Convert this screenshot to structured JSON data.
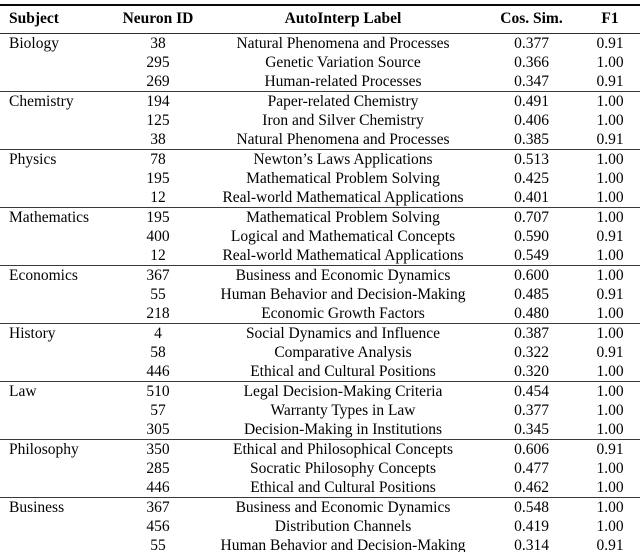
{
  "table": {
    "columns": [
      "Subject",
      "Neuron ID",
      "AutoInterp Label",
      "Cos. Sim.",
      "F1"
    ],
    "groups": [
      {
        "subject": "Biology",
        "rows": [
          {
            "neuron_id": "38",
            "label": "Natural Phenomena and Processes",
            "cos_sim": "0.377",
            "f1": "0.91"
          },
          {
            "neuron_id": "295",
            "label": "Genetic Variation Source",
            "cos_sim": "0.366",
            "f1": "1.00"
          },
          {
            "neuron_id": "269",
            "label": "Human-related Processes",
            "cos_sim": "0.347",
            "f1": "0.91"
          }
        ]
      },
      {
        "subject": "Chemistry",
        "rows": [
          {
            "neuron_id": "194",
            "label": "Paper-related Chemistry",
            "cos_sim": "0.491",
            "f1": "1.00"
          },
          {
            "neuron_id": "125",
            "label": "Iron and Silver Chemistry",
            "cos_sim": "0.406",
            "f1": "1.00"
          },
          {
            "neuron_id": "38",
            "label": "Natural Phenomena and Processes",
            "cos_sim": "0.385",
            "f1": "0.91"
          }
        ]
      },
      {
        "subject": "Physics",
        "rows": [
          {
            "neuron_id": "78",
            "label": "Newton’s Laws Applications",
            "cos_sim": "0.513",
            "f1": "1.00"
          },
          {
            "neuron_id": "195",
            "label": "Mathematical Problem Solving",
            "cos_sim": "0.425",
            "f1": "1.00"
          },
          {
            "neuron_id": "12",
            "label": "Real-world Mathematical Applications",
            "cos_sim": "0.401",
            "f1": "1.00"
          }
        ]
      },
      {
        "subject": "Mathematics",
        "rows": [
          {
            "neuron_id": "195",
            "label": "Mathematical Problem Solving",
            "cos_sim": "0.707",
            "f1": "1.00"
          },
          {
            "neuron_id": "400",
            "label": "Logical and Mathematical Concepts",
            "cos_sim": "0.590",
            "f1": "0.91"
          },
          {
            "neuron_id": "12",
            "label": "Real-world Mathematical Applications",
            "cos_sim": "0.549",
            "f1": "1.00"
          }
        ]
      },
      {
        "subject": "Economics",
        "rows": [
          {
            "neuron_id": "367",
            "label": "Business and Economic Dynamics",
            "cos_sim": "0.600",
            "f1": "1.00"
          },
          {
            "neuron_id": "55",
            "label": "Human Behavior and Decision-Making",
            "cos_sim": "0.485",
            "f1": "0.91"
          },
          {
            "neuron_id": "218",
            "label": "Economic Growth Factors",
            "cos_sim": "0.480",
            "f1": "1.00"
          }
        ]
      },
      {
        "subject": "History",
        "rows": [
          {
            "neuron_id": "4",
            "label": "Social Dynamics and Influence",
            "cos_sim": "0.387",
            "f1": "1.00"
          },
          {
            "neuron_id": "58",
            "label": "Comparative Analysis",
            "cos_sim": "0.322",
            "f1": "0.91"
          },
          {
            "neuron_id": "446",
            "label": "Ethical and Cultural Positions",
            "cos_sim": "0.320",
            "f1": "1.00"
          }
        ]
      },
      {
        "subject": "Law",
        "rows": [
          {
            "neuron_id": "510",
            "label": "Legal Decision-Making Criteria",
            "cos_sim": "0.454",
            "f1": "1.00"
          },
          {
            "neuron_id": "57",
            "label": "Warranty Types in Law",
            "cos_sim": "0.377",
            "f1": "1.00"
          },
          {
            "neuron_id": "305",
            "label": "Decision-Making in Institutions",
            "cos_sim": "0.345",
            "f1": "1.00"
          }
        ]
      },
      {
        "subject": "Philosophy",
        "rows": [
          {
            "neuron_id": "350",
            "label": "Ethical and Philosophical Concepts",
            "cos_sim": "0.606",
            "f1": "0.91"
          },
          {
            "neuron_id": "285",
            "label": "Socratic Philosophy Concepts",
            "cos_sim": "0.477",
            "f1": "1.00"
          },
          {
            "neuron_id": "446",
            "label": "Ethical and Cultural Positions",
            "cos_sim": "0.462",
            "f1": "1.00"
          }
        ]
      },
      {
        "subject": "Business",
        "rows": [
          {
            "neuron_id": "367",
            "label": "Business and Economic Dynamics",
            "cos_sim": "0.548",
            "f1": "1.00"
          },
          {
            "neuron_id": "456",
            "label": "Distribution Channels",
            "cos_sim": "0.419",
            "f1": "1.00"
          },
          {
            "neuron_id": "55",
            "label": "Human Behavior and Decision-Making",
            "cos_sim": "0.314",
            "f1": "0.91"
          }
        ]
      }
    ]
  }
}
